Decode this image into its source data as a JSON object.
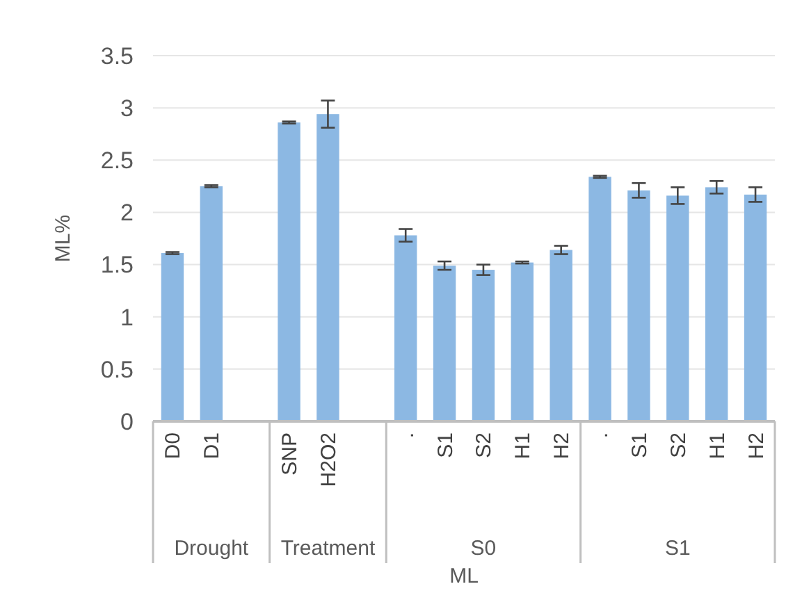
{
  "chart_data": {
    "type": "bar",
    "xlabel": "ML",
    "ylabel": "ML%",
    "categories": [
      "D0",
      "D1",
      null,
      "SNP",
      "H2O2",
      null,
      ".",
      "S1",
      "S2",
      "H1",
      "H2",
      ".",
      "S1",
      "S2",
      "H1",
      "H2"
    ],
    "values": [
      1.61,
      2.25,
      null,
      2.86,
      2.94,
      null,
      1.78,
      1.49,
      1.45,
      1.52,
      1.64,
      2.34,
      2.21,
      2.16,
      2.24,
      2.17
    ],
    "errors": [
      0.01,
      0.01,
      null,
      0.01,
      0.13,
      null,
      0.06,
      0.04,
      0.05,
      0.01,
      0.04,
      0.01,
      0.07,
      0.08,
      0.06,
      0.07
    ],
    "color": "#8cb8e3",
    "ylim": [
      0,
      3.5
    ],
    "yticks": [
      0,
      0.5,
      1,
      1.5,
      2,
      2.5,
      3,
      3.5
    ],
    "grid": "y",
    "annotations": [
      "Drought",
      "Treatment",
      "S0",
      "S1"
    ]
  }
}
